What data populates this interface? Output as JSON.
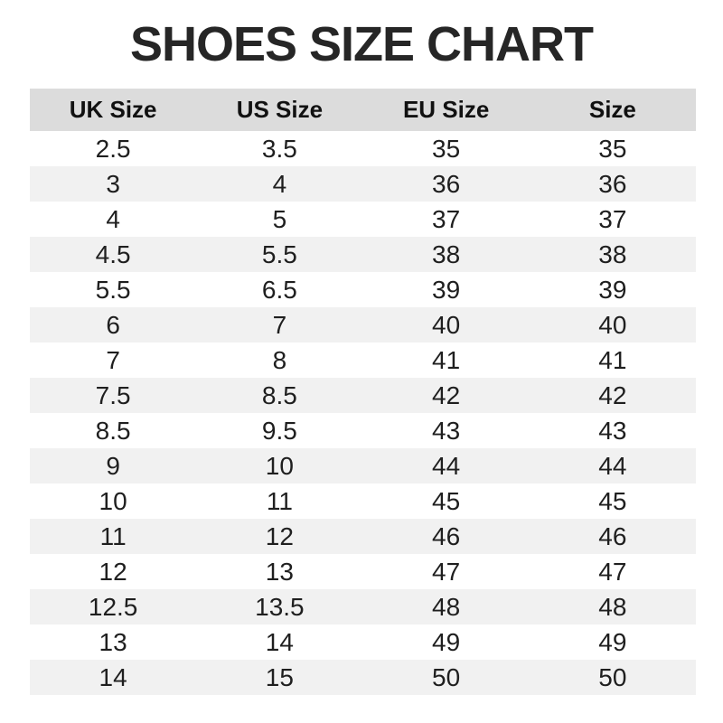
{
  "title": "SHOES SIZE CHART",
  "colors": {
    "background": "#ffffff",
    "title_text": "#262626",
    "header_bg": "#dcdcdc",
    "header_text": "#111111",
    "row_stripe_bg": "#f1f1f1",
    "row_text": "#1f1f1f"
  },
  "table": {
    "columns": [
      "UK Size",
      "US Size",
      "EU Size",
      "Size"
    ],
    "rows": [
      [
        "2.5",
        "3.5",
        "35",
        "35"
      ],
      [
        "3",
        "4",
        "36",
        "36"
      ],
      [
        "4",
        "5",
        "37",
        "37"
      ],
      [
        "4.5",
        "5.5",
        "38",
        "38"
      ],
      [
        "5.5",
        "6.5",
        "39",
        "39"
      ],
      [
        "6",
        "7",
        "40",
        "40"
      ],
      [
        "7",
        "8",
        "41",
        "41"
      ],
      [
        "7.5",
        "8.5",
        "42",
        "42"
      ],
      [
        "8.5",
        "9.5",
        "43",
        "43"
      ],
      [
        "9",
        "10",
        "44",
        "44"
      ],
      [
        "10",
        "11",
        "45",
        "45"
      ],
      [
        "11",
        "12",
        "46",
        "46"
      ],
      [
        "12",
        "13",
        "47",
        "47"
      ],
      [
        "12.5",
        "13.5",
        "48",
        "48"
      ],
      [
        "13",
        "14",
        "49",
        "49"
      ],
      [
        "14",
        "15",
        "50",
        "50"
      ]
    ]
  },
  "chart_data": {
    "type": "table",
    "title": "SHOES SIZE CHART",
    "columns": [
      "UK Size",
      "US Size",
      "EU Size",
      "Size"
    ],
    "rows": [
      [
        "2.5",
        "3.5",
        "35",
        "35"
      ],
      [
        "3",
        "4",
        "36",
        "36"
      ],
      [
        "4",
        "5",
        "37",
        "37"
      ],
      [
        "4.5",
        "5.5",
        "38",
        "38"
      ],
      [
        "5.5",
        "6.5",
        "39",
        "39"
      ],
      [
        "6",
        "7",
        "40",
        "40"
      ],
      [
        "7",
        "8",
        "41",
        "41"
      ],
      [
        "7.5",
        "8.5",
        "42",
        "42"
      ],
      [
        "8.5",
        "9.5",
        "43",
        "43"
      ],
      [
        "9",
        "10",
        "44",
        "44"
      ],
      [
        "10",
        "11",
        "45",
        "45"
      ],
      [
        "11",
        "12",
        "46",
        "46"
      ],
      [
        "12",
        "13",
        "47",
        "47"
      ],
      [
        "12.5",
        "13.5",
        "48",
        "48"
      ],
      [
        "13",
        "14",
        "49",
        "49"
      ],
      [
        "14",
        "15",
        "50",
        "50"
      ]
    ],
    "layout": {
      "header_background": "#dcdcdc",
      "zebra_striping": true,
      "stripe_background": "#f1f1f1",
      "first_data_row_background": "#ffffff"
    }
  }
}
